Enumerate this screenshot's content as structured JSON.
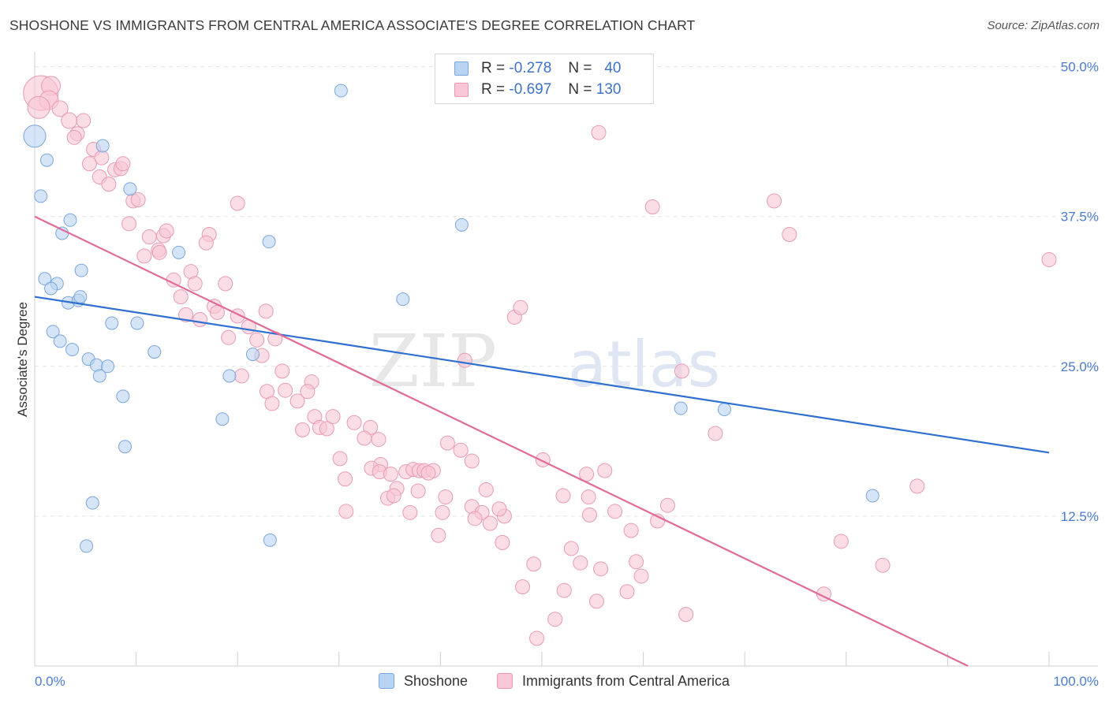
{
  "header": {
    "title": "SHOSHONE VS IMMIGRANTS FROM CENTRAL AMERICA ASSOCIATE'S DEGREE CORRELATION CHART",
    "source": "Source: ZipAtlas.com"
  },
  "watermark": {
    "zip": "ZIP",
    "atlas": "atlas"
  },
  "legend": {
    "rows": [
      {
        "r_label": "R =",
        "r_value": "-0.278",
        "n_label": "N =",
        "n_value": "40"
      },
      {
        "r_label": "R =",
        "r_value": "-0.697",
        "n_label": "N =",
        "n_value": "130"
      }
    ]
  },
  "bottom_legend": {
    "series1": "Shoshone",
    "series2": "Immigrants from Central America"
  },
  "colors": {
    "blue_fill": "#b9d3f2",
    "blue_stroke": "#7aa6dc",
    "blue_line": "#2f6fd0",
    "pink_fill": "#f8c6d6",
    "pink_stroke": "#e89ab4",
    "pink_line": "#e06a98",
    "tick": "#4a7bd0",
    "grid": "#e4e4e4"
  },
  "chart_data": {
    "type": "scatter",
    "ylabel": "Associate's Degree",
    "xlabel": "",
    "x_tick_labels": [
      "0.0%",
      "100.0%"
    ],
    "y_tick_labels": [
      "12.5%",
      "25.0%",
      "37.5%",
      "50.0%"
    ],
    "y_ticks": [
      12.5,
      25.0,
      37.5,
      50.0
    ],
    "xlim": [
      0,
      100
    ],
    "ylim": [
      0,
      50.5
    ],
    "grid": true,
    "series": [
      {
        "name": "Shoshone",
        "color": "#b9d3f2",
        "trend": {
          "x": [
            0,
            100
          ],
          "y": [
            30.8,
            17.8
          ]
        },
        "points": [
          [
            0.0,
            44.2,
            14
          ],
          [
            1.2,
            42.2,
            8
          ],
          [
            0.6,
            39.2,
            8
          ],
          [
            6.7,
            43.4,
            8
          ],
          [
            9.4,
            39.8,
            8
          ],
          [
            3.5,
            37.2,
            8
          ],
          [
            2.7,
            36.1,
            8
          ],
          [
            14.2,
            34.5,
            8
          ],
          [
            23.1,
            35.4,
            8
          ],
          [
            42.1,
            36.8,
            8
          ],
          [
            30.2,
            48.0,
            8
          ],
          [
            1.0,
            32.3,
            8
          ],
          [
            2.2,
            31.9,
            8
          ],
          [
            1.6,
            31.5,
            8
          ],
          [
            4.6,
            33.0,
            8
          ],
          [
            3.3,
            30.3,
            8
          ],
          [
            4.3,
            30.5,
            8
          ],
          [
            4.5,
            30.8,
            8
          ],
          [
            36.3,
            30.6,
            8
          ],
          [
            7.6,
            28.6,
            8
          ],
          [
            10.1,
            28.6,
            8
          ],
          [
            1.8,
            27.9,
            8
          ],
          [
            2.5,
            27.1,
            8
          ],
          [
            3.7,
            26.4,
            8
          ],
          [
            11.8,
            26.2,
            8
          ],
          [
            21.5,
            26.0,
            8
          ],
          [
            5.3,
            25.6,
            8
          ],
          [
            6.1,
            25.1,
            8
          ],
          [
            7.2,
            25.0,
            8
          ],
          [
            6.4,
            24.2,
            8
          ],
          [
            19.2,
            24.2,
            8
          ],
          [
            8.7,
            22.5,
            8
          ],
          [
            18.5,
            20.6,
            8
          ],
          [
            63.7,
            21.5,
            8
          ],
          [
            68.0,
            21.4,
            8
          ],
          [
            8.9,
            18.3,
            8
          ],
          [
            82.6,
            14.2,
            8
          ],
          [
            5.7,
            13.6,
            8
          ],
          [
            23.2,
            10.5,
            8
          ],
          [
            5.1,
            10.0,
            8
          ]
        ]
      },
      {
        "name": "Immigrants from Central America",
        "color": "#f8c6d6",
        "trend": {
          "x": [
            0,
            92
          ],
          "y": [
            37.5,
            0
          ]
        },
        "points": [
          [
            0.6,
            47.8,
            22
          ],
          [
            1.6,
            48.4,
            12
          ],
          [
            1.4,
            47.2,
            12
          ],
          [
            2.5,
            46.5,
            10
          ],
          [
            0.4,
            46.6,
            14
          ],
          [
            3.4,
            45.5,
            10
          ],
          [
            4.8,
            45.5,
            9
          ],
          [
            4.2,
            44.4,
            9
          ],
          [
            3.9,
            44.1,
            9
          ],
          [
            5.8,
            43.1,
            9
          ],
          [
            6.6,
            42.4,
            9
          ],
          [
            5.4,
            41.9,
            9
          ],
          [
            7.9,
            41.4,
            9
          ],
          [
            8.5,
            41.5,
            9
          ],
          [
            8.7,
            41.9,
            9
          ],
          [
            6.4,
            40.8,
            9
          ],
          [
            7.3,
            40.2,
            9
          ],
          [
            9.7,
            38.8,
            9
          ],
          [
            10.2,
            38.9,
            9
          ],
          [
            20.0,
            38.6,
            9
          ],
          [
            9.3,
            36.9,
            9
          ],
          [
            11.3,
            35.8,
            9
          ],
          [
            12.7,
            35.9,
            9
          ],
          [
            13.0,
            36.3,
            9
          ],
          [
            17.2,
            36.0,
            9
          ],
          [
            16.9,
            35.3,
            9
          ],
          [
            12.2,
            34.7,
            9
          ],
          [
            10.8,
            34.2,
            9
          ],
          [
            12.3,
            34.5,
            9
          ],
          [
            15.4,
            32.9,
            9
          ],
          [
            13.7,
            32.2,
            9
          ],
          [
            15.8,
            31.9,
            9
          ],
          [
            18.8,
            31.9,
            9
          ],
          [
            14.4,
            30.8,
            9
          ],
          [
            17.7,
            30.0,
            9
          ],
          [
            18.0,
            29.5,
            9
          ],
          [
            20.0,
            29.2,
            9
          ],
          [
            22.8,
            29.6,
            9
          ],
          [
            14.9,
            29.3,
            9
          ],
          [
            16.3,
            28.9,
            9
          ],
          [
            21.1,
            28.3,
            9
          ],
          [
            19.1,
            27.4,
            9
          ],
          [
            21.9,
            27.2,
            9
          ],
          [
            23.7,
            27.3,
            9
          ],
          [
            22.4,
            25.9,
            9
          ],
          [
            20.4,
            24.2,
            9
          ],
          [
            24.4,
            24.6,
            9
          ],
          [
            27.3,
            23.7,
            9
          ],
          [
            24.7,
            23.0,
            9
          ],
          [
            22.9,
            22.9,
            9
          ],
          [
            26.9,
            22.9,
            9
          ],
          [
            25.9,
            22.1,
            9
          ],
          [
            23.4,
            21.9,
            9
          ],
          [
            27.6,
            20.8,
            9
          ],
          [
            29.4,
            20.8,
            9
          ],
          [
            26.4,
            19.7,
            9
          ],
          [
            28.1,
            19.9,
            9
          ],
          [
            28.8,
            19.8,
            9
          ],
          [
            31.5,
            20.3,
            9
          ],
          [
            33.1,
            19.9,
            9
          ],
          [
            32.5,
            19.0,
            9
          ],
          [
            33.9,
            18.9,
            9
          ],
          [
            40.7,
            18.6,
            9
          ],
          [
            42.0,
            18.0,
            9
          ],
          [
            43.1,
            17.1,
            9
          ],
          [
            30.1,
            17.3,
            9
          ],
          [
            34.1,
            16.8,
            9
          ],
          [
            33.2,
            16.5,
            9
          ],
          [
            34.0,
            16.2,
            9
          ],
          [
            35.1,
            16.0,
            9
          ],
          [
            36.6,
            16.2,
            9
          ],
          [
            37.3,
            16.4,
            9
          ],
          [
            37.9,
            16.3,
            9
          ],
          [
            38.4,
            16.3,
            9
          ],
          [
            39.3,
            16.3,
            9
          ],
          [
            30.6,
            15.6,
            9
          ],
          [
            38.8,
            16.1,
            9
          ],
          [
            50.1,
            17.2,
            9
          ],
          [
            54.4,
            16.0,
            9
          ],
          [
            56.2,
            16.3,
            9
          ],
          [
            35.7,
            14.8,
            9
          ],
          [
            37.8,
            14.6,
            9
          ],
          [
            34.8,
            14.0,
            9
          ],
          [
            35.4,
            14.2,
            9
          ],
          [
            40.5,
            14.1,
            9
          ],
          [
            44.5,
            14.7,
            9
          ],
          [
            52.1,
            14.2,
            9
          ],
          [
            54.6,
            14.1,
            9
          ],
          [
            62.4,
            13.4,
            9
          ],
          [
            30.7,
            12.9,
            9
          ],
          [
            37.0,
            12.8,
            9
          ],
          [
            40.2,
            12.8,
            9
          ],
          [
            43.1,
            13.3,
            9
          ],
          [
            44.1,
            12.8,
            9
          ],
          [
            46.3,
            12.5,
            9
          ],
          [
            45.8,
            13.1,
            9
          ],
          [
            54.7,
            12.6,
            9
          ],
          [
            57.2,
            12.9,
            9
          ],
          [
            44.9,
            11.9,
            9
          ],
          [
            43.4,
            12.3,
            9
          ],
          [
            61.4,
            12.1,
            9
          ],
          [
            58.8,
            11.3,
            9
          ],
          [
            39.8,
            10.9,
            9
          ],
          [
            46.1,
            10.3,
            9
          ],
          [
            52.9,
            9.8,
            9
          ],
          [
            49.2,
            8.5,
            9
          ],
          [
            53.8,
            8.6,
            9
          ],
          [
            55.8,
            8.1,
            9
          ],
          [
            59.3,
            8.7,
            9
          ],
          [
            59.8,
            7.5,
            9
          ],
          [
            48.1,
            6.6,
            9
          ],
          [
            52.2,
            6.3,
            9
          ],
          [
            58.4,
            6.2,
            9
          ],
          [
            55.4,
            5.4,
            9
          ],
          [
            64.2,
            4.3,
            9
          ],
          [
            51.3,
            3.9,
            9
          ],
          [
            49.5,
            2.3,
            9
          ],
          [
            55.6,
            44.5,
            9
          ],
          [
            60.9,
            38.3,
            9
          ],
          [
            72.9,
            38.8,
            9
          ],
          [
            74.4,
            36.0,
            9
          ],
          [
            100.0,
            33.9,
            9
          ],
          [
            47.3,
            29.1,
            9
          ],
          [
            47.9,
            29.9,
            9
          ],
          [
            42.4,
            25.5,
            9
          ],
          [
            63.8,
            24.6,
            9
          ],
          [
            67.1,
            19.4,
            9
          ],
          [
            79.5,
            10.4,
            9
          ],
          [
            83.6,
            8.4,
            9
          ],
          [
            87.0,
            15.0,
            9
          ],
          [
            77.8,
            6.0,
            9
          ]
        ]
      }
    ]
  }
}
